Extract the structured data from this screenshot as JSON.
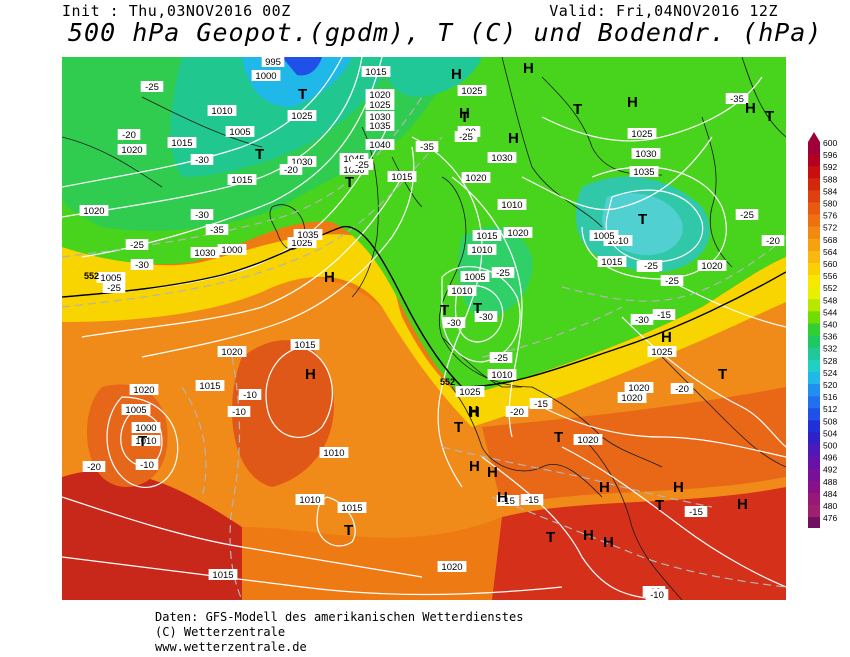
{
  "header": {
    "init": "Init : Thu,03NOV2016 00Z",
    "valid": "Valid: Fri,04NOV2016 12Z",
    "title": "500 hPa Geopot.(gpdm), T (C) und Bodendr. (hPa)"
  },
  "footer": {
    "line1": "Daten: GFS-Modell des amerikanischen Wetterdienstes",
    "line2": "(C) Wetterzentrale",
    "line3": "www.wetterzentrale.de"
  },
  "legend": {
    "values": [
      "600",
      "596",
      "592",
      "588",
      "584",
      "580",
      "576",
      "572",
      "568",
      "564",
      "560",
      "556",
      "552",
      "548",
      "544",
      "540",
      "536",
      "532",
      "528",
      "524",
      "520",
      "516",
      "512",
      "508",
      "504",
      "500",
      "496",
      "492",
      "488",
      "484",
      "480",
      "476"
    ],
    "colors": [
      "#a0003a",
      "#b40020",
      "#c80e0e",
      "#d4280a",
      "#e04010",
      "#e85a10",
      "#ee7010",
      "#f28a10",
      "#f6a210",
      "#f8b810",
      "#fad000",
      "#f8e800",
      "#e8f000",
      "#b8e800",
      "#70dc00",
      "#30d030",
      "#20c860",
      "#20c898",
      "#20d0c0",
      "#20b8e8",
      "#2090f0",
      "#2070f0",
      "#2050e8",
      "#2030d8",
      "#3020c8",
      "#5018b8",
      "#6810a8",
      "#781098",
      "#881088",
      "#981878",
      "#a02070",
      "#701060"
    ]
  },
  "map_labels": {
    "pressure": [
      "995",
      "1000",
      "1015",
      "1020",
      "1025",
      "1030",
      "1035",
      "1040",
      "1045",
      "1050",
      "1010",
      "1005",
      "1015",
      "1025",
      "1030",
      "1020",
      "1015",
      "1025",
      "1030",
      "1020",
      "1015",
      "1010",
      "1005",
      "1010",
      "1015",
      "1020",
      "1025",
      "1030",
      "1035",
      "1020",
      "1015",
      "1010",
      "1005",
      "1010",
      "1020",
      "1025",
      "1020",
      "1015",
      "1010",
      "1015",
      "1020",
      "1030",
      "1025",
      "1020",
      "1010",
      "1005",
      "1000",
      "1010",
      "1015",
      "1020",
      "1015",
      "1020",
      "1025",
      "1000",
      "1005",
      "1020",
      "1035",
      "1010"
    ],
    "temperature": [
      "-25",
      "-20",
      "-30",
      "-25",
      "-30",
      "-30",
      "-25",
      "-35",
      "-25",
      "-20",
      "-30",
      "-25",
      "-30",
      "-35",
      "-25",
      "-30",
      "-25",
      "-20",
      "-15",
      "-15",
      "-10",
      "-10",
      "-10",
      "-20",
      "-10",
      "-15",
      "-15",
      "-10",
      "-20",
      "-25",
      "-30",
      "-35",
      "-25",
      "-20",
      "-15",
      "-30",
      "-25"
    ],
    "reference": [
      "552",
      "552"
    ],
    "highs": [
      "H",
      "H",
      "H",
      "H",
      "H",
      "H",
      "H",
      "H",
      "H",
      "H",
      "H",
      "H",
      "H",
      "H",
      "H",
      "H",
      "H",
      "H",
      "H",
      "H"
    ],
    "lows": [
      "T",
      "T",
      "T",
      "T",
      "T",
      "T",
      "T",
      "T",
      "T",
      "T",
      "T",
      "T",
      "T",
      "T",
      "T",
      "T"
    ]
  }
}
